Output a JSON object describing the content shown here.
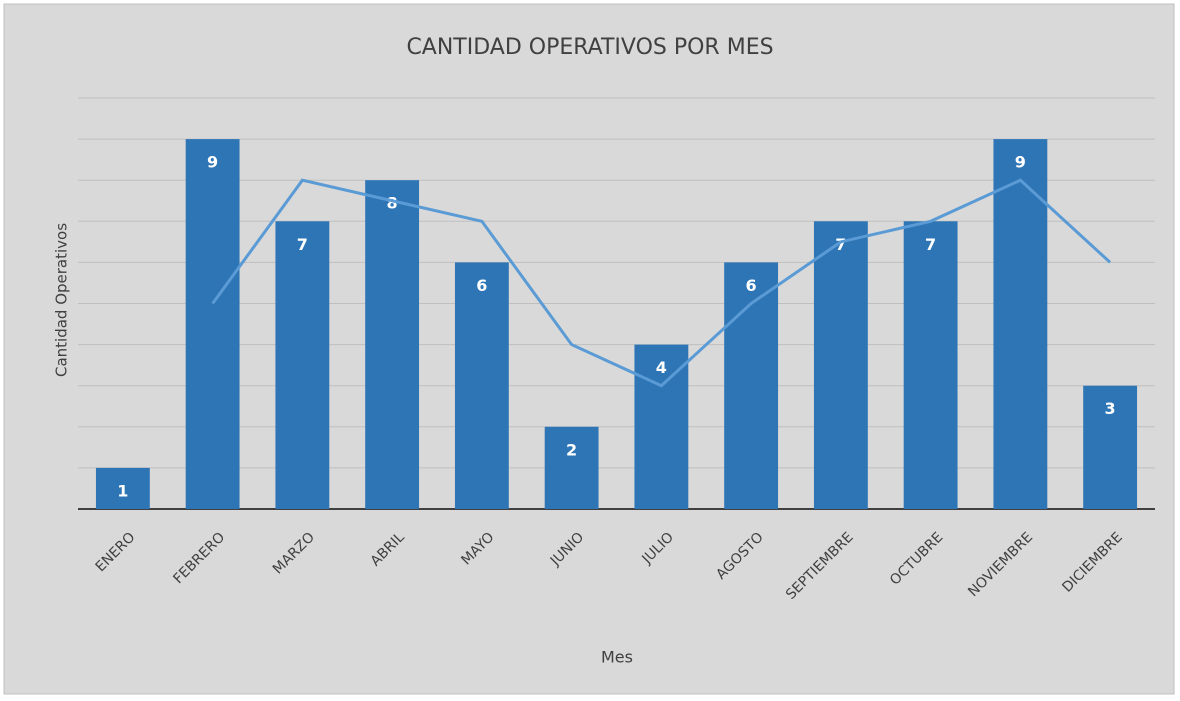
{
  "chart_data": {
    "type": "bar",
    "title": "CANTIDAD OPERATIVOS POR MES",
    "x_label": "Mes",
    "y_label": "Cantidad Operativos",
    "categories": [
      "ENERO",
      "FEBRERO",
      "MARZO",
      "ABRIL",
      "MAYO",
      "JUNIO",
      "JULIO",
      "AGOSTO",
      "SEPTIEMBRE",
      "OCTUBRE",
      "NOVIEMBRE",
      "DICIEMBRE"
    ],
    "series": [
      {
        "type": "bar",
        "color": "#2e75b6",
        "values": [
          1,
          9,
          7,
          8,
          6,
          2,
          4,
          6,
          7,
          7,
          9,
          3
        ],
        "data_labels": true
      },
      {
        "type": "line",
        "color": "#5b9bd5",
        "values": [
          null,
          5,
          8,
          7.5,
          7,
          4,
          3,
          5,
          6.5,
          7,
          8,
          6
        ]
      }
    ],
    "ylim": [
      0,
      10
    ],
    "yticks": [
      0,
      1,
      2,
      3,
      4,
      5,
      6,
      7,
      8,
      9,
      10
    ],
    "ytick_labels": false,
    "grid": true
  }
}
